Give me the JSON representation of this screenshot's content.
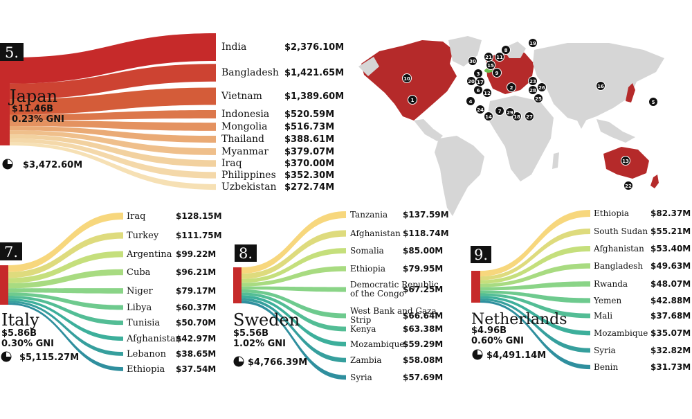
{
  "panels": [
    {
      "rank": "5.",
      "country": "Japan",
      "total": "$11.46B",
      "gni": "0.23% GNI",
      "other": "$3,472.60M",
      "flows": [
        {
          "name": "India",
          "amount": "$2,376.10M",
          "value": 2376.1
        },
        {
          "name": "Bangladesh",
          "amount": "$1,421.65M",
          "value": 1421.65
        },
        {
          "name": "Vietnam",
          "amount": "$1,389.60M",
          "value": 1389.6
        },
        {
          "name": "Indonesia",
          "amount": "$520.59M",
          "value": 520.59
        },
        {
          "name": "Mongolia",
          "amount": "$516.73M",
          "value": 516.73
        },
        {
          "name": "Thailand",
          "amount": "$388.61M",
          "value": 388.61
        },
        {
          "name": "Myanmar",
          "amount": "$379.07M",
          "value": 379.07
        },
        {
          "name": "Iraq",
          "amount": "$370.00M",
          "value": 370.0
        },
        {
          "name": "Philippines",
          "amount": "$352.30M",
          "value": 352.3
        },
        {
          "name": "Uzbekistan",
          "amount": "$272.74M",
          "value": 272.74
        }
      ]
    },
    {
      "rank": "7.",
      "country": "Italy",
      "total": "$5.86B",
      "gni": "0.30% GNI",
      "other": "$5,115.27M",
      "flows": [
        {
          "name": "Iraq",
          "amount": "$128.15M",
          "value": 128.15
        },
        {
          "name": "Turkey",
          "amount": "$111.75M",
          "value": 111.75
        },
        {
          "name": "Argentina",
          "amount": "$99.22M",
          "value": 99.22
        },
        {
          "name": "Cuba",
          "amount": "$96.21M",
          "value": 96.21
        },
        {
          "name": "Niger",
          "amount": "$79.17M",
          "value": 79.17
        },
        {
          "name": "Libya",
          "amount": "$60.37M",
          "value": 60.37
        },
        {
          "name": "Tunisia",
          "amount": "$50.70M",
          "value": 50.7
        },
        {
          "name": "Afghanistan",
          "amount": "$42.97M",
          "value": 42.97
        },
        {
          "name": "Lebanon",
          "amount": "$38.65M",
          "value": 38.65
        },
        {
          "name": "Ethiopia",
          "amount": "$37.54M",
          "value": 37.54
        }
      ]
    },
    {
      "rank": "8.",
      "country": "Sweden",
      "total": "$5.56B",
      "gni": "1.02% GNI",
      "other": "$4,766.39M",
      "flows": [
        {
          "name": "Tanzania",
          "amount": "$137.59M",
          "value": 137.59
        },
        {
          "name": "Afghanistan",
          "amount": "$118.74M",
          "value": 118.74
        },
        {
          "name": "Somalia",
          "amount": "$85.00M",
          "value": 85.0
        },
        {
          "name": "Ethiopia",
          "amount": "$79.95M",
          "value": 79.95
        },
        {
          "name": "Democratic Republic of the Congo",
          "amount": "$67.25M",
          "value": 67.25
        },
        {
          "name": "West Bank and Gaza Strip",
          "amount": "$66.64M",
          "value": 66.64
        },
        {
          "name": "Kenya",
          "amount": "$63.38M",
          "value": 63.38
        },
        {
          "name": "Mozambique",
          "amount": "$59.29M",
          "value": 59.29
        },
        {
          "name": "Zambia",
          "amount": "$58.08M",
          "value": 58.08
        },
        {
          "name": "Syria",
          "amount": "$57.69M",
          "value": 57.69
        }
      ]
    },
    {
      "rank": "9.",
      "country": "Netherlands",
      "total": "$4.96B",
      "gni": "0.60% GNI",
      "other": "$4,491.14M",
      "flows": [
        {
          "name": "Ethiopia",
          "amount": "$82.37M",
          "value": 82.37
        },
        {
          "name": "South Sudan",
          "amount": "$55.21M",
          "value": 55.21
        },
        {
          "name": "Afghanistan",
          "amount": "$53.40M",
          "value": 53.4
        },
        {
          "name": "Bangladesh",
          "amount": "$49.63M",
          "value": 49.63
        },
        {
          "name": "Rwanda",
          "amount": "$48.07M",
          "value": 48.07
        },
        {
          "name": "Yemen",
          "amount": "$42.88M",
          "value": 42.88
        },
        {
          "name": "Mali",
          "amount": "$37.68M",
          "value": 37.68
        },
        {
          "name": "Mozambique",
          "amount": "$35.07M",
          "value": 35.07
        },
        {
          "name": "Syria",
          "amount": "$32.82M",
          "value": 32.82
        },
        {
          "name": "Benin",
          "amount": "$31.73M",
          "value": 31.73
        }
      ]
    }
  ],
  "map_markers": [
    "1",
    "2",
    "3",
    "4",
    "5",
    "6",
    "7",
    "8",
    "9",
    "10",
    "11",
    "12",
    "13",
    "14",
    "15",
    "16",
    "17",
    "18",
    "19",
    "20",
    "21",
    "22",
    "23",
    "24",
    "25",
    "26",
    "27",
    "28",
    "29",
    "30"
  ],
  "colors": {
    "source": "#c62a2a",
    "map_land": "#d6d6d6",
    "map_highlight": "#b52a2a",
    "map_green": "#6bbf4e"
  },
  "chart_data": [
    {
      "type": "sankey",
      "source": "Japan",
      "targets": [
        "India",
        "Bangladesh",
        "Vietnam",
        "Indonesia",
        "Mongolia",
        "Thailand",
        "Myanmar",
        "Iraq",
        "Philippines",
        "Uzbekistan"
      ],
      "values": [
        2376.1,
        1421.65,
        1389.6,
        520.59,
        516.73,
        388.61,
        379.07,
        370.0,
        352.3,
        272.74
      ]
    },
    {
      "type": "sankey",
      "source": "Italy",
      "targets": [
        "Iraq",
        "Turkey",
        "Argentina",
        "Cuba",
        "Niger",
        "Libya",
        "Tunisia",
        "Afghanistan",
        "Lebanon",
        "Ethiopia"
      ],
      "values": [
        128.15,
        111.75,
        99.22,
        96.21,
        79.17,
        60.37,
        50.7,
        42.97,
        38.65,
        37.54
      ]
    },
    {
      "type": "sankey",
      "source": "Sweden",
      "targets": [
        "Tanzania",
        "Afghanistan",
        "Somalia",
        "Ethiopia",
        "Democratic Republic of the Congo",
        "West Bank and Gaza Strip",
        "Kenya",
        "Mozambique",
        "Zambia",
        "Syria"
      ],
      "values": [
        137.59,
        118.74,
        85.0,
        79.95,
        67.25,
        66.64,
        63.38,
        59.29,
        58.08,
        57.69
      ]
    },
    {
      "type": "sankey",
      "source": "Netherlands",
      "targets": [
        "Ethiopia",
        "South Sudan",
        "Afghanistan",
        "Bangladesh",
        "Rwanda",
        "Yemen",
        "Mali",
        "Mozambique",
        "Syria",
        "Benin"
      ],
      "values": [
        82.37,
        55.21,
        53.4,
        49.63,
        48.07,
        42.88,
        37.68,
        35.07,
        32.82,
        31.73
      ]
    }
  ]
}
